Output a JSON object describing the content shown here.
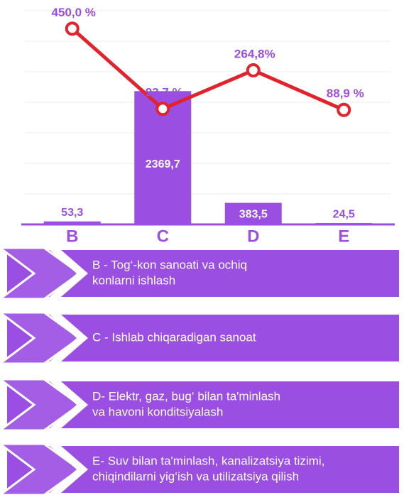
{
  "chart_data": {
    "type": "bar-line",
    "categories": [
      "B",
      "C",
      "D",
      "E"
    ],
    "series": [
      {
        "type": "bar",
        "color": "#9b4ee2",
        "values": [
          53.3,
          2369.7,
          383.5,
          24.5
        ],
        "value_labels": [
          "53,3",
          "2369,7",
          "383,5",
          "24,5"
        ]
      },
      {
        "type": "line",
        "axis": "y2",
        "color": "#e3232c",
        "values": [
          450.0,
          93.7,
          264.8,
          88.9
        ],
        "value_labels": [
          "450,0 %",
          "93,7 %",
          "264,8%",
          "88,9 %"
        ]
      }
    ],
    "ylim": [
      0,
      3800
    ],
    "y2lim": [
      -420,
      530
    ]
  },
  "notes": [
    {
      "lines": [
        "B - Tog‘-kon sanoati va ochiq",
        "konlarni ishlash"
      ]
    },
    {
      "lines": [
        "C - Ishlab chiqaradigan sanoat"
      ]
    },
    {
      "lines": [
        "D- Elektr, gaz, bug‘ bilan ta'minlash",
        "va havoni konditsiyalash"
      ]
    },
    {
      "lines": [
        "E- Suv bilan ta'minlash, kanalizatsiya tizimi,",
        "chiqindilarni yig‘ish va utilizatsiya qilish"
      ]
    }
  ]
}
